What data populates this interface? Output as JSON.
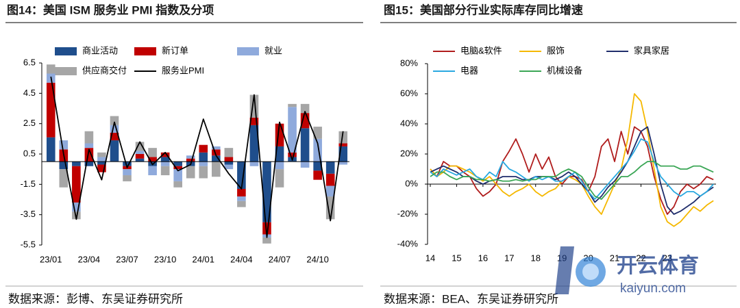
{
  "chart_data": [
    {
      "type": "bar",
      "stacked": true,
      "title": "图14：美国 ISM 服务业 PMI 指数及分项",
      "source": "数据来源：彭博、东吴证券研究所",
      "categories": [
        "23/01",
        null,
        null,
        "23/04",
        null,
        null,
        "23/07",
        null,
        null,
        "23/10",
        null,
        null,
        "24/01",
        null,
        null,
        "24/04",
        null,
        null,
        "24/07",
        null,
        null,
        "24/10",
        null,
        null
      ],
      "ylim": [
        -5.5,
        6.5
      ],
      "yticks": [
        -5.5,
        -3.5,
        -1.5,
        0.5,
        2.5,
        4.5,
        6.5
      ],
      "series": [
        {
          "name": "商业活动",
          "color": "#1f4e8c",
          "values": [
            1.6,
            -0.5,
            -0.3,
            -0.3,
            -0.2,
            1.4,
            -0.3,
            0.2,
            -0.3,
            0.3,
            -0.3,
            -0.3,
            0.6,
            0.4,
            -0.2,
            -1.8,
            2.4,
            -4.0,
            1.0,
            0.3,
            2.2,
            -0.6,
            -0.8,
            1.0
          ]
        },
        {
          "name": "新订单",
          "color": "#c00000",
          "values": [
            3.6,
            0.8,
            -2.4,
            0.9,
            -0.5,
            0.5,
            -0.2,
            0.3,
            0.3,
            0.3,
            -0.2,
            0.2,
            0.5,
            0.4,
            0.3,
            -0.5,
            0.5,
            -0.8,
            1.5,
            0.3,
            1.0,
            -0.6,
            -0.8,
            0.2
          ]
        },
        {
          "name": "就业",
          "color": "#8faadc",
          "values": [
            0.6,
            0.6,
            -0.6,
            0.3,
            0.3,
            0.5,
            -0.4,
            0.2,
            -0.6,
            -0.3,
            -0.8,
            0.2,
            -0.3,
            0.2,
            -0.3,
            -0.3,
            -0.3,
            -0.2,
            -0.5,
            3.0,
            -0.4,
            1.5,
            -0.7,
            -0.2
          ]
        },
        {
          "name": "供应商交付",
          "color": "#a6a6a6",
          "values": [
            0.6,
            -1.2,
            -0.5,
            0.8,
            0.3,
            0.6,
            -0.4,
            0.6,
            0.6,
            -0.6,
            -0.4,
            -0.8,
            -0.8,
            -1.0,
            0.6,
            -0.4,
            1.5,
            -0.4,
            -1.2,
            0.2,
            0.6,
            0.8,
            -1.5,
            0.8
          ]
        },
        {
          "name": "服务业PMI",
          "color": "#000000",
          "type": "line",
          "values": [
            5.6,
            0.5,
            -3.8,
            0.8,
            -1.2,
            2.6,
            -0.4,
            1.3,
            -0.2,
            0.6,
            -0.6,
            -0.2,
            2.8,
            0.4,
            -0.8,
            -1.8,
            4.4,
            -5.0,
            2.6,
            0.1,
            3.3,
            1.2,
            -3.9,
            2.0
          ]
        }
      ]
    },
    {
      "type": "line",
      "title": "图15：美国部分行业实际库存同比增速",
      "source": "数据来源：BEA、东吴证券研究所",
      "x": [
        14,
        14.25,
        14.5,
        14.75,
        15,
        15.25,
        15.5,
        15.75,
        16,
        16.25,
        16.5,
        16.75,
        17,
        17.25,
        17.5,
        17.75,
        18,
        18.25,
        18.5,
        18.75,
        19,
        19.25,
        19.5,
        19.75,
        20,
        20.25,
        20.5,
        20.75,
        21,
        21.25,
        21.5,
        21.75,
        22,
        22.25,
        22.5,
        22.75,
        23,
        23.25,
        23.5,
        23.75,
        24,
        24.25,
        24.5,
        24.75
      ],
      "xlim": [
        14,
        24.85
      ],
      "xticks": [
        14,
        15,
        16,
        17,
        18,
        19,
        20,
        21,
        22,
        23
      ],
      "ylim": [
        -40,
        80
      ],
      "yticks": [
        {
          "value": -40,
          "label": "-40%"
        },
        {
          "value": -20,
          "label": "-20%"
        },
        {
          "value": 0,
          "label": "0%"
        },
        {
          "value": 20,
          "label": "20%"
        },
        {
          "value": 40,
          "label": "40%"
        },
        {
          "value": 60,
          "label": "60%"
        },
        {
          "value": 80,
          "label": "80%"
        }
      ],
      "series": [
        {
          "name": "电脑&软件",
          "color": "#b01c1c",
          "values": [
            10,
            5,
            15,
            12,
            12,
            8,
            5,
            -3,
            -8,
            -5,
            0,
            15,
            22,
            30,
            20,
            8,
            20,
            10,
            18,
            5,
            0,
            5,
            5,
            3,
            -5,
            5,
            25,
            30,
            15,
            35,
            20,
            38,
            35,
            25,
            5,
            -10,
            -20,
            -15,
            -5,
            0,
            -3,
            0,
            5,
            3
          ]
        },
        {
          "name": "服饰",
          "color": "#f5b800",
          "values": [
            10,
            5,
            8,
            12,
            12,
            10,
            8,
            5,
            2,
            5,
            0,
            -5,
            -8,
            -5,
            -3,
            0,
            -5,
            -8,
            -5,
            -3,
            2,
            5,
            3,
            0,
            -8,
            -15,
            -20,
            -10,
            0,
            10,
            30,
            60,
            55,
            35,
            10,
            -15,
            -25,
            -28,
            -25,
            -20,
            -15,
            -18,
            -14,
            -11
          ]
        },
        {
          "name": "家具家居",
          "color": "#1f2d6b",
          "values": [
            8,
            10,
            12,
            10,
            8,
            5,
            5,
            2,
            0,
            2,
            3,
            5,
            5,
            5,
            3,
            3,
            5,
            5,
            5,
            3,
            5,
            8,
            5,
            0,
            -5,
            -12,
            -8,
            -2,
            2,
            8,
            15,
            25,
            35,
            38,
            20,
            0,
            -15,
            -20,
            -18,
            -15,
            -12,
            -8,
            -5,
            -2
          ]
        },
        {
          "name": "电器",
          "color": "#29a8e0",
          "values": [
            8,
            5,
            10,
            8,
            6,
            8,
            10,
            5,
            3,
            8,
            5,
            15,
            10,
            8,
            5,
            2,
            5,
            3,
            5,
            2,
            2,
            5,
            8,
            2,
            -5,
            -10,
            -5,
            0,
            5,
            10,
            15,
            22,
            30,
            28,
            15,
            5,
            0,
            -5,
            -8,
            -5,
            -5,
            -8,
            -5,
            0
          ]
        },
        {
          "name": "机械设备",
          "color": "#3aa655",
          "values": [
            5,
            8,
            8,
            5,
            3,
            5,
            5,
            3,
            3,
            2,
            3,
            2,
            2,
            3,
            2,
            3,
            3,
            5,
            5,
            5,
            8,
            10,
            8,
            5,
            -2,
            -8,
            -10,
            -5,
            0,
            5,
            5,
            8,
            12,
            15,
            15,
            12,
            12,
            12,
            10,
            10,
            12,
            12,
            10,
            8
          ]
        }
      ]
    }
  ],
  "watermark": {
    "brand": "开云体育",
    "site": "kaiyun.com"
  }
}
